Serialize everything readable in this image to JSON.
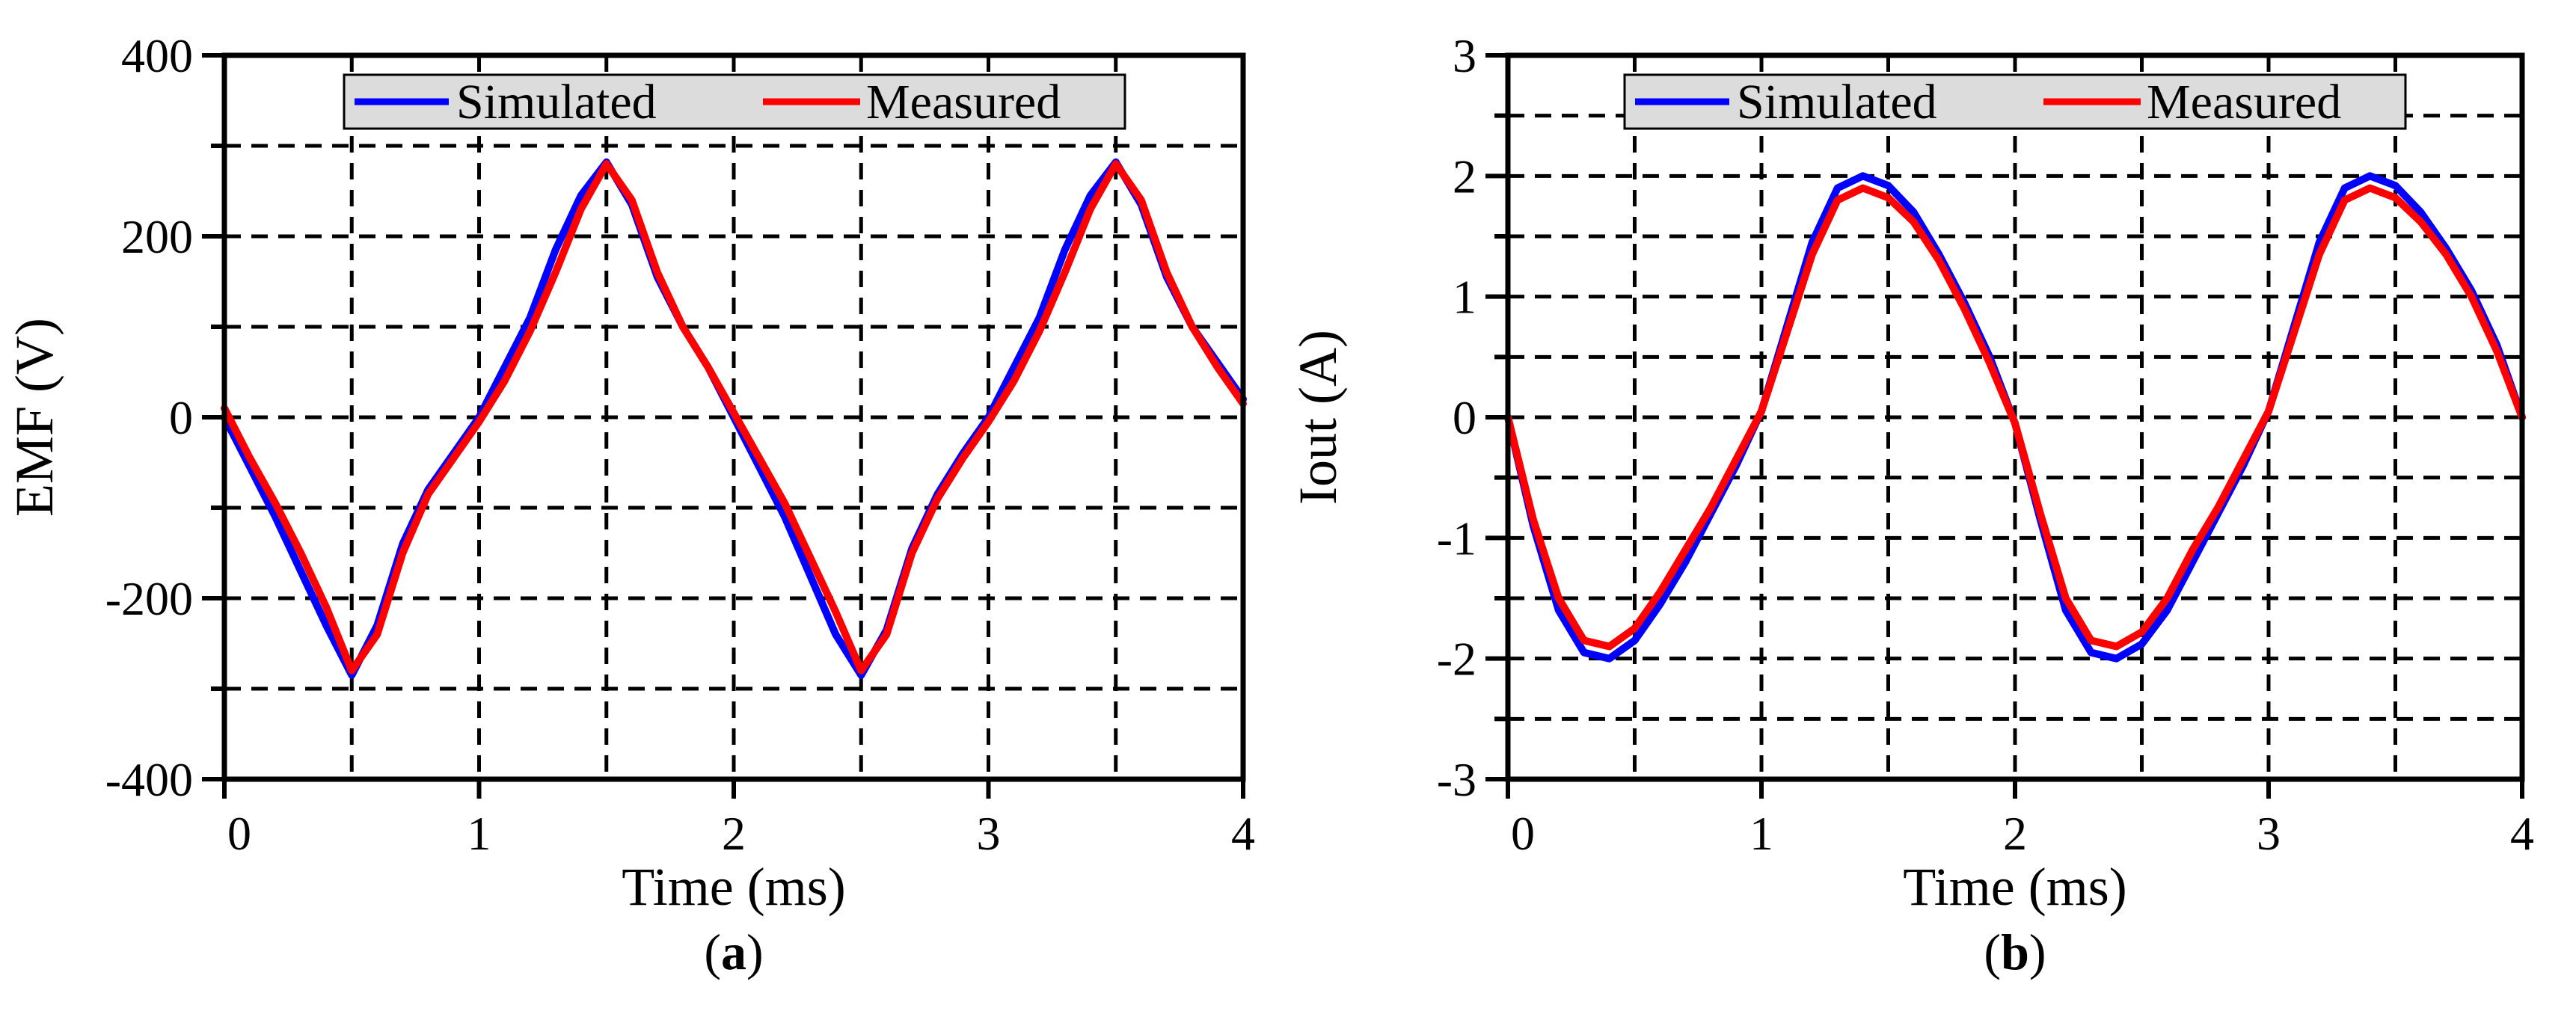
{
  "chart_data": [
    {
      "type": "line",
      "panel": "a",
      "caption_letter": "a",
      "xlabel": "Time (ms)",
      "ylabel": "EMF (V)",
      "xlim": [
        0,
        4
      ],
      "ylim": [
        -400,
        400
      ],
      "xticks": [
        0,
        1,
        2,
        3,
        4
      ],
      "xtick_labels": [
        "0",
        "1",
        "2",
        "3",
        "4"
      ],
      "yticks": [
        -400,
        -200,
        0,
        200,
        400
      ],
      "ytick_labels": [
        "-400",
        "-200",
        "0",
        "200",
        "400"
      ],
      "minor_y_step": 100,
      "x_gridlines": [
        0.5,
        1,
        1.5,
        2,
        2.5,
        3,
        3.5
      ],
      "y_gridlines": [
        -300,
        -200,
        -100,
        0,
        100,
        200,
        300
      ],
      "grid": true,
      "legend": {
        "placement": "top-center",
        "entries": [
          "Simulated",
          "Measured"
        ]
      },
      "series": [
        {
          "name": "Simulated",
          "color": "#0000ff",
          "x": [
            0,
            0.1,
            0.2,
            0.3,
            0.4,
            0.5,
            0.6,
            0.7,
            0.8,
            0.9,
            1.0,
            1.1,
            1.2,
            1.3,
            1.4,
            1.5,
            1.6,
            1.7,
            1.8,
            1.9,
            2.0,
            2.1,
            2.2,
            2.3,
            2.4,
            2.5,
            2.6,
            2.7,
            2.8,
            2.9,
            3.0,
            3.1,
            3.2,
            3.3,
            3.4,
            3.5,
            3.6,
            3.7,
            3.8,
            3.9,
            4.0
          ],
          "y": [
            0,
            -55,
            -110,
            -170,
            -230,
            -285,
            -230,
            -140,
            -80,
            -40,
            0,
            55,
            110,
            185,
            245,
            282,
            235,
            155,
            100,
            55,
            0,
            -55,
            -110,
            -175,
            -240,
            -285,
            -235,
            -145,
            -85,
            -40,
            0,
            55,
            110,
            185,
            245,
            282,
            235,
            155,
            100,
            60,
            20
          ]
        },
        {
          "name": "Measured",
          "color": "#ff0000",
          "x": [
            0,
            0.1,
            0.2,
            0.3,
            0.4,
            0.5,
            0.6,
            0.7,
            0.8,
            0.9,
            1.0,
            1.1,
            1.2,
            1.3,
            1.4,
            1.5,
            1.6,
            1.7,
            1.8,
            1.9,
            2.0,
            2.1,
            2.2,
            2.3,
            2.4,
            2.5,
            2.6,
            2.7,
            2.8,
            2.9,
            3.0,
            3.1,
            3.2,
            3.3,
            3.4,
            3.5,
            3.6,
            3.7,
            3.8,
            3.9,
            4.0
          ],
          "y": [
            10,
            -45,
            -95,
            -150,
            -210,
            -280,
            -240,
            -150,
            -85,
            -45,
            -5,
            40,
            95,
            160,
            230,
            280,
            240,
            160,
            100,
            55,
            5,
            -45,
            -95,
            -155,
            -215,
            -280,
            -240,
            -150,
            -90,
            -45,
            -5,
            40,
            95,
            160,
            230,
            280,
            240,
            160,
            100,
            55,
            15
          ]
        }
      ]
    },
    {
      "type": "line",
      "panel": "b",
      "caption_letter": "b",
      "xlabel": "Time (ms)",
      "ylabel": "Iout (A)",
      "xlim": [
        0,
        4
      ],
      "ylim": [
        -3,
        3
      ],
      "xticks": [
        0,
        1,
        2,
        3,
        4
      ],
      "xtick_labels": [
        "0",
        "1",
        "2",
        "3",
        "4"
      ],
      "yticks": [
        -3,
        -2,
        -1,
        0,
        1,
        2,
        3
      ],
      "ytick_labels": [
        "-3",
        "-2",
        "-1",
        "0",
        "1",
        "2",
        "3"
      ],
      "minor_y_step": 0.5,
      "x_gridlines": [
        0.5,
        1,
        1.5,
        2,
        2.5,
        3,
        3.5
      ],
      "y_gridlines": [
        -2.5,
        -2,
        -1.5,
        -1,
        -0.5,
        0,
        0.5,
        1,
        1.5,
        2,
        2.5
      ],
      "grid": true,
      "legend": {
        "placement": "top-center",
        "entries": [
          "Simulated",
          "Measured"
        ]
      },
      "series": [
        {
          "name": "Simulated",
          "color": "#0000ff",
          "x": [
            0,
            0.1,
            0.2,
            0.3,
            0.4,
            0.5,
            0.6,
            0.7,
            0.8,
            0.9,
            1.0,
            1.1,
            1.2,
            1.3,
            1.4,
            1.5,
            1.6,
            1.7,
            1.8,
            1.9,
            2.0,
            2.1,
            2.2,
            2.3,
            2.4,
            2.5,
            2.6,
            2.7,
            2.8,
            2.9,
            3.0,
            3.1,
            3.2,
            3.3,
            3.4,
            3.5,
            3.6,
            3.7,
            3.8,
            3.9,
            4.0
          ],
          "y": [
            0,
            -0.9,
            -1.6,
            -1.95,
            -2.0,
            -1.85,
            -1.55,
            -1.2,
            -0.8,
            -0.4,
            0.05,
            0.75,
            1.45,
            1.9,
            2.0,
            1.92,
            1.7,
            1.35,
            0.95,
            0.5,
            -0.05,
            -0.85,
            -1.6,
            -1.95,
            -2.0,
            -1.88,
            -1.6,
            -1.2,
            -0.8,
            -0.4,
            0.05,
            0.75,
            1.45,
            1.9,
            2.0,
            1.92,
            1.7,
            1.4,
            1.05,
            0.6,
            0
          ]
        },
        {
          "name": "Measured",
          "color": "#ff0000",
          "x": [
            0,
            0.1,
            0.2,
            0.3,
            0.4,
            0.5,
            0.6,
            0.7,
            0.8,
            0.9,
            1.0,
            1.1,
            1.2,
            1.3,
            1.4,
            1.5,
            1.6,
            1.7,
            1.8,
            1.9,
            2.0,
            2.1,
            2.2,
            2.3,
            2.4,
            2.5,
            2.6,
            2.7,
            2.8,
            2.9,
            3.0,
            3.1,
            3.2,
            3.3,
            3.4,
            3.5,
            3.6,
            3.7,
            3.8,
            3.9,
            4.0
          ],
          "y": [
            0,
            -0.85,
            -1.5,
            -1.85,
            -1.9,
            -1.75,
            -1.45,
            -1.1,
            -0.75,
            -0.35,
            0.05,
            0.7,
            1.35,
            1.8,
            1.9,
            1.82,
            1.62,
            1.3,
            0.9,
            0.45,
            -0.05,
            -0.8,
            -1.5,
            -1.85,
            -1.9,
            -1.78,
            -1.5,
            -1.1,
            -0.75,
            -0.35,
            0.05,
            0.7,
            1.35,
            1.8,
            1.9,
            1.82,
            1.62,
            1.35,
            1.0,
            0.55,
            0
          ]
        }
      ]
    }
  ]
}
